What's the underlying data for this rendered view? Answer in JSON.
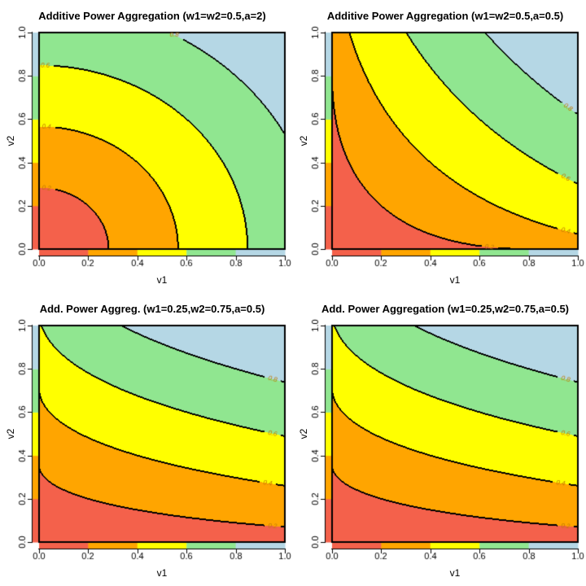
{
  "chart_data": {
    "type": "heatmap",
    "subtype": "filled-contour-grid",
    "description": "2x2 grid of filled contour plots of the additive power aggregation function f(v1,v2) = (w1*v1^a + w2*v2^a)^(1/a) on the unit square. Thin color strips along the left and bottom axes show the band color of the coordinate value itself (boundaries at 0.2, 0.4, 0.6, 0.8).",
    "x_axis": {
      "label": "v1",
      "range": [
        0,
        1
      ],
      "ticks": [
        "0.0",
        "0.2",
        "0.4",
        "0.6",
        "0.8",
        "1.0"
      ]
    },
    "y_axis": {
      "label": "v2",
      "range": [
        0,
        1
      ],
      "ticks": [
        "0.0",
        "0.2",
        "0.4",
        "0.6",
        "0.8",
        "1.0"
      ]
    },
    "bands": [
      {
        "range": [
          0.0,
          0.2
        ],
        "color": "#F4614B"
      },
      {
        "range": [
          0.2,
          0.4
        ],
        "color": "#FFA500"
      },
      {
        "range": [
          0.4,
          0.6
        ],
        "color": "#FFFF00"
      },
      {
        "range": [
          0.6,
          0.8
        ],
        "color": "#90E690"
      },
      {
        "range": [
          0.8,
          1.0
        ],
        "color": "#B5D7E5"
      }
    ],
    "contour_levels": [
      0.2,
      0.4,
      0.6,
      0.8
    ],
    "contour_line_color": "#000000",
    "contour_label_color": "#C07800",
    "panels": [
      {
        "title": "Additive Power Aggregation (w1=w2=0.5,a=2)",
        "w1": 0.5,
        "w2": 0.5,
        "a": 2,
        "contour_labels": [
          {
            "text": "0.2",
            "level": 0.2,
            "at_v1": 0.03
          },
          {
            "text": "0.4",
            "level": 0.4,
            "at_v1": 0.03
          },
          {
            "text": "0.6",
            "level": 0.6,
            "at_v1": 0.025
          },
          {
            "text": "0.8",
            "level": 0.8,
            "at_v1": 0.55
          }
        ]
      },
      {
        "title": "Additive Power Aggregation (w1=w2=0.5,a=0.5)",
        "w1": 0.5,
        "w2": 0.5,
        "a": 0.5,
        "contour_labels": [
          {
            "text": "0.2",
            "level": 0.2,
            "at_v1": 0.64
          },
          {
            "text": "0.4",
            "level": 0.4,
            "at_v1": 0.95
          },
          {
            "text": "0.6",
            "level": 0.6,
            "at_v1": 0.95
          },
          {
            "text": "0.8",
            "level": 0.8,
            "at_v1": 0.96
          }
        ]
      },
      {
        "title": "Add. Power Aggreg. (w1=0.25,w2=0.75,a=0.5)",
        "w1": 0.25,
        "w2": 0.75,
        "a": 0.5,
        "contour_labels": [
          {
            "text": "0.2",
            "level": 0.2,
            "at_v1": 0.95
          },
          {
            "text": "0.4",
            "level": 0.4,
            "at_v1": 0.93
          },
          {
            "text": "0.6",
            "level": 0.6,
            "at_v1": 0.95
          },
          {
            "text": "0.8",
            "level": 0.8,
            "at_v1": 0.95
          }
        ]
      },
      {
        "title": "Add. Power Aggregation (w1=0.25,w2=0.75,a=0.5)",
        "w1": 0.25,
        "w2": 0.75,
        "a": 0.5,
        "contour_labels": [
          {
            "text": "0.2",
            "level": 0.2,
            "at_v1": 0.95
          },
          {
            "text": "0.4",
            "level": 0.4,
            "at_v1": 0.93
          },
          {
            "text": "0.6",
            "level": 0.6,
            "at_v1": 0.95
          },
          {
            "text": "0.8",
            "level": 0.8,
            "at_v1": 0.95
          }
        ]
      }
    ]
  }
}
